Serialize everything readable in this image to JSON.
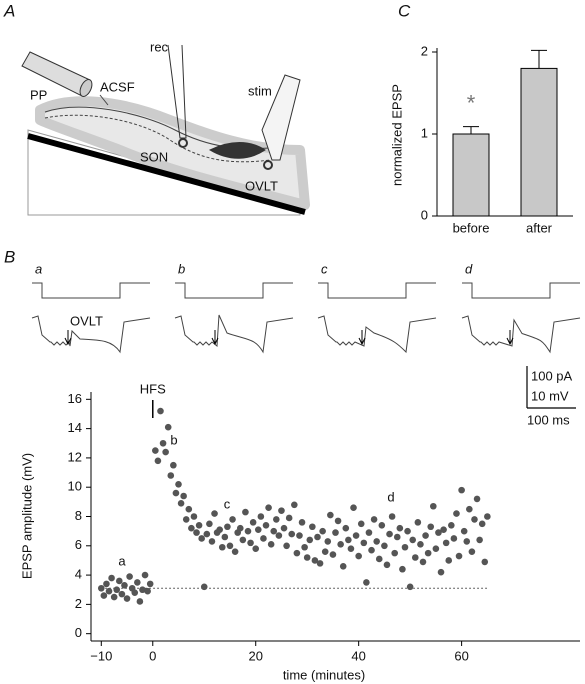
{
  "panels": {
    "a": "A",
    "b": "B",
    "c": "C"
  },
  "diagram": {
    "rec": "rec",
    "stim": "stim",
    "acsf": "ACSF",
    "pp": "PP",
    "son": "SON",
    "ovlt": "OVLT"
  },
  "traces": {
    "labels": [
      "a",
      "b",
      "c",
      "d"
    ],
    "stim_site": "OVLT",
    "scale": {
      "current": "100 pA",
      "voltage": "10 mV",
      "time": "100 ms"
    }
  },
  "chart_data": [
    {
      "type": "bar",
      "ylabel": "normalized EPSP",
      "categories": [
        "before",
        "after"
      ],
      "values": [
        1.0,
        1.8
      ],
      "errors": [
        0.09,
        0.22
      ],
      "color": "#c8c8c8",
      "ylim": [
        0,
        2
      ],
      "yticks": [
        0,
        1,
        2
      ],
      "significance": "*"
    },
    {
      "type": "scatter",
      "xlabel": "time (minutes)",
      "ylabel": "EPSP amplitude (mV)",
      "color": "#555555",
      "xlim": [
        -12,
        83
      ],
      "ylim": [
        -0.5,
        16.5
      ],
      "xticks": [
        {
          "value": -10,
          "label": "−10"
        },
        0,
        20,
        40,
        60
      ],
      "yticks": [
        0,
        2,
        4,
        6,
        8,
        10,
        12,
        14,
        16
      ],
      "baseline": 3.1,
      "event": {
        "label": "HFS",
        "x": 0
      },
      "annotations": [
        "a",
        "b",
        "c",
        "d"
      ],
      "x": [
        -10,
        -9.5,
        -9,
        -8.5,
        -8,
        -7.5,
        -7,
        -6.5,
        -6,
        -5.5,
        -5,
        -4.5,
        -4,
        -3.5,
        -3,
        -2.5,
        -2,
        -1.5,
        -1,
        -0.5,
        0.5,
        1,
        1.5,
        2,
        2.5,
        3,
        3.5,
        4,
        4.5,
        5,
        5.5,
        6,
        6.5,
        7,
        7.5,
        8,
        8.5,
        9,
        9.5,
        10,
        10.5,
        11,
        11.5,
        12,
        12.5,
        13,
        13.5,
        14,
        14.5,
        15,
        15.5,
        16,
        16.5,
        17,
        17.5,
        18,
        18.5,
        19,
        19.5,
        20,
        20.5,
        21,
        21.5,
        22,
        22.5,
        23,
        23.5,
        24,
        24.5,
        25,
        25.5,
        26,
        26.5,
        27,
        27.5,
        28,
        28.5,
        29,
        29.5,
        30,
        30.5,
        31,
        31.5,
        32,
        32.5,
        33,
        33.5,
        34,
        34.5,
        35,
        35.5,
        36,
        36.5,
        37,
        37.5,
        38,
        38.5,
        39,
        39.5,
        40,
        40.5,
        41,
        41.5,
        42,
        42.5,
        43,
        43.5,
        44,
        44.5,
        45,
        45.5,
        46,
        46.5,
        47,
        47.5,
        48,
        48.5,
        49,
        49.5,
        50,
        50.5,
        51,
        51.5,
        52,
        52.5,
        53,
        53.5,
        54,
        54.5,
        55,
        55.5,
        56,
        56.5,
        57,
        57.5,
        58,
        58.5,
        59,
        59.5,
        60,
        60.5,
        61,
        61.5,
        62,
        62.5,
        63,
        63.5,
        64,
        64.5,
        65
      ],
      "y": [
        3.1,
        2.6,
        3.4,
        2.9,
        3.8,
        2.5,
        3.0,
        3.6,
        2.7,
        3.3,
        2.4,
        3.9,
        3.1,
        2.8,
        3.5,
        2.2,
        3.0,
        4.0,
        2.9,
        3.4,
        12.5,
        11.8,
        15.2,
        13.0,
        12.4,
        14.1,
        10.8,
        11.5,
        9.6,
        10.2,
        8.9,
        9.4,
        7.8,
        8.5,
        7.2,
        8.0,
        6.9,
        7.4,
        6.5,
        3.2,
        6.8,
        7.5,
        6.3,
        8.2,
        6.9,
        7.1,
        5.9,
        6.6,
        7.3,
        6.0,
        7.8,
        5.6,
        6.9,
        7.2,
        6.4,
        8.3,
        7.0,
        6.2,
        7.6,
        5.8,
        7.1,
        8.0,
        6.5,
        7.4,
        8.6,
        6.1,
        7.0,
        7.8,
        6.7,
        8.4,
        7.2,
        6.0,
        7.9,
        6.8,
        8.8,
        5.5,
        6.7,
        7.6,
        5.9,
        5.2,
        6.4,
        7.3,
        5.0,
        6.6,
        4.8,
        7.0,
        5.6,
        6.3,
        8.1,
        5.4,
        6.9,
        7.7,
        6.1,
        4.6,
        7.2,
        6.4,
        5.8,
        8.6,
        6.7,
        5.3,
        7.5,
        6.2,
        3.5,
        6.9,
        5.7,
        7.8,
        6.3,
        5.1,
        7.4,
        6.0,
        4.7,
        6.8,
        8.0,
        5.5,
        6.6,
        7.2,
        4.4,
        5.9,
        7.0,
        3.2,
        6.4,
        5.2,
        7.6,
        6.1,
        4.9,
        6.7,
        5.5,
        7.3,
        8.7,
        5.8,
        6.9,
        4.2,
        7.1,
        6.2,
        5.0,
        7.4,
        6.5,
        8.2,
        5.3,
        9.8,
        7.0,
        6.3,
        8.5,
        5.6,
        7.8,
        9.2,
        6.4,
        7.5,
        4.9,
        8.0
      ]
    }
  ]
}
